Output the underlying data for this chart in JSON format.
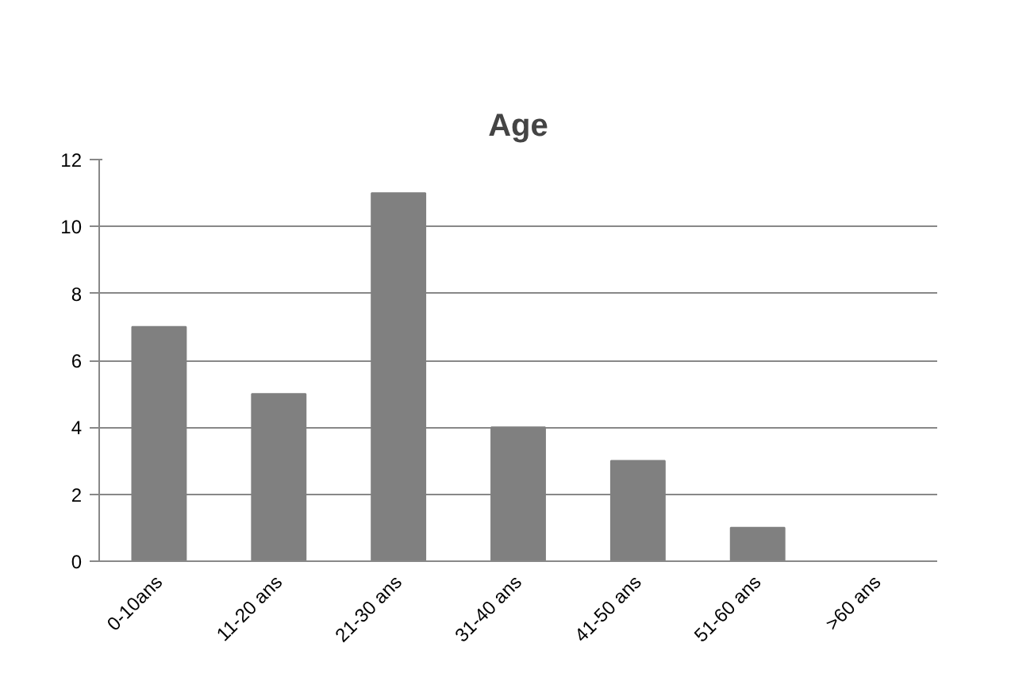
{
  "chart_data": {
    "type": "bar",
    "title": "Age",
    "categories": [
      "0-10ans",
      "11-20 ans",
      "21-30 ans",
      "31-40 ans",
      "41-50 ans",
      "51-60 ans",
      ">60 ans"
    ],
    "values": [
      7,
      5,
      11,
      4,
      3,
      1,
      0
    ],
    "color": "#808080",
    "ylim": [
      0,
      12
    ],
    "yticks": [
      0,
      2,
      4,
      6,
      8,
      10,
      12
    ],
    "grid": "y"
  }
}
